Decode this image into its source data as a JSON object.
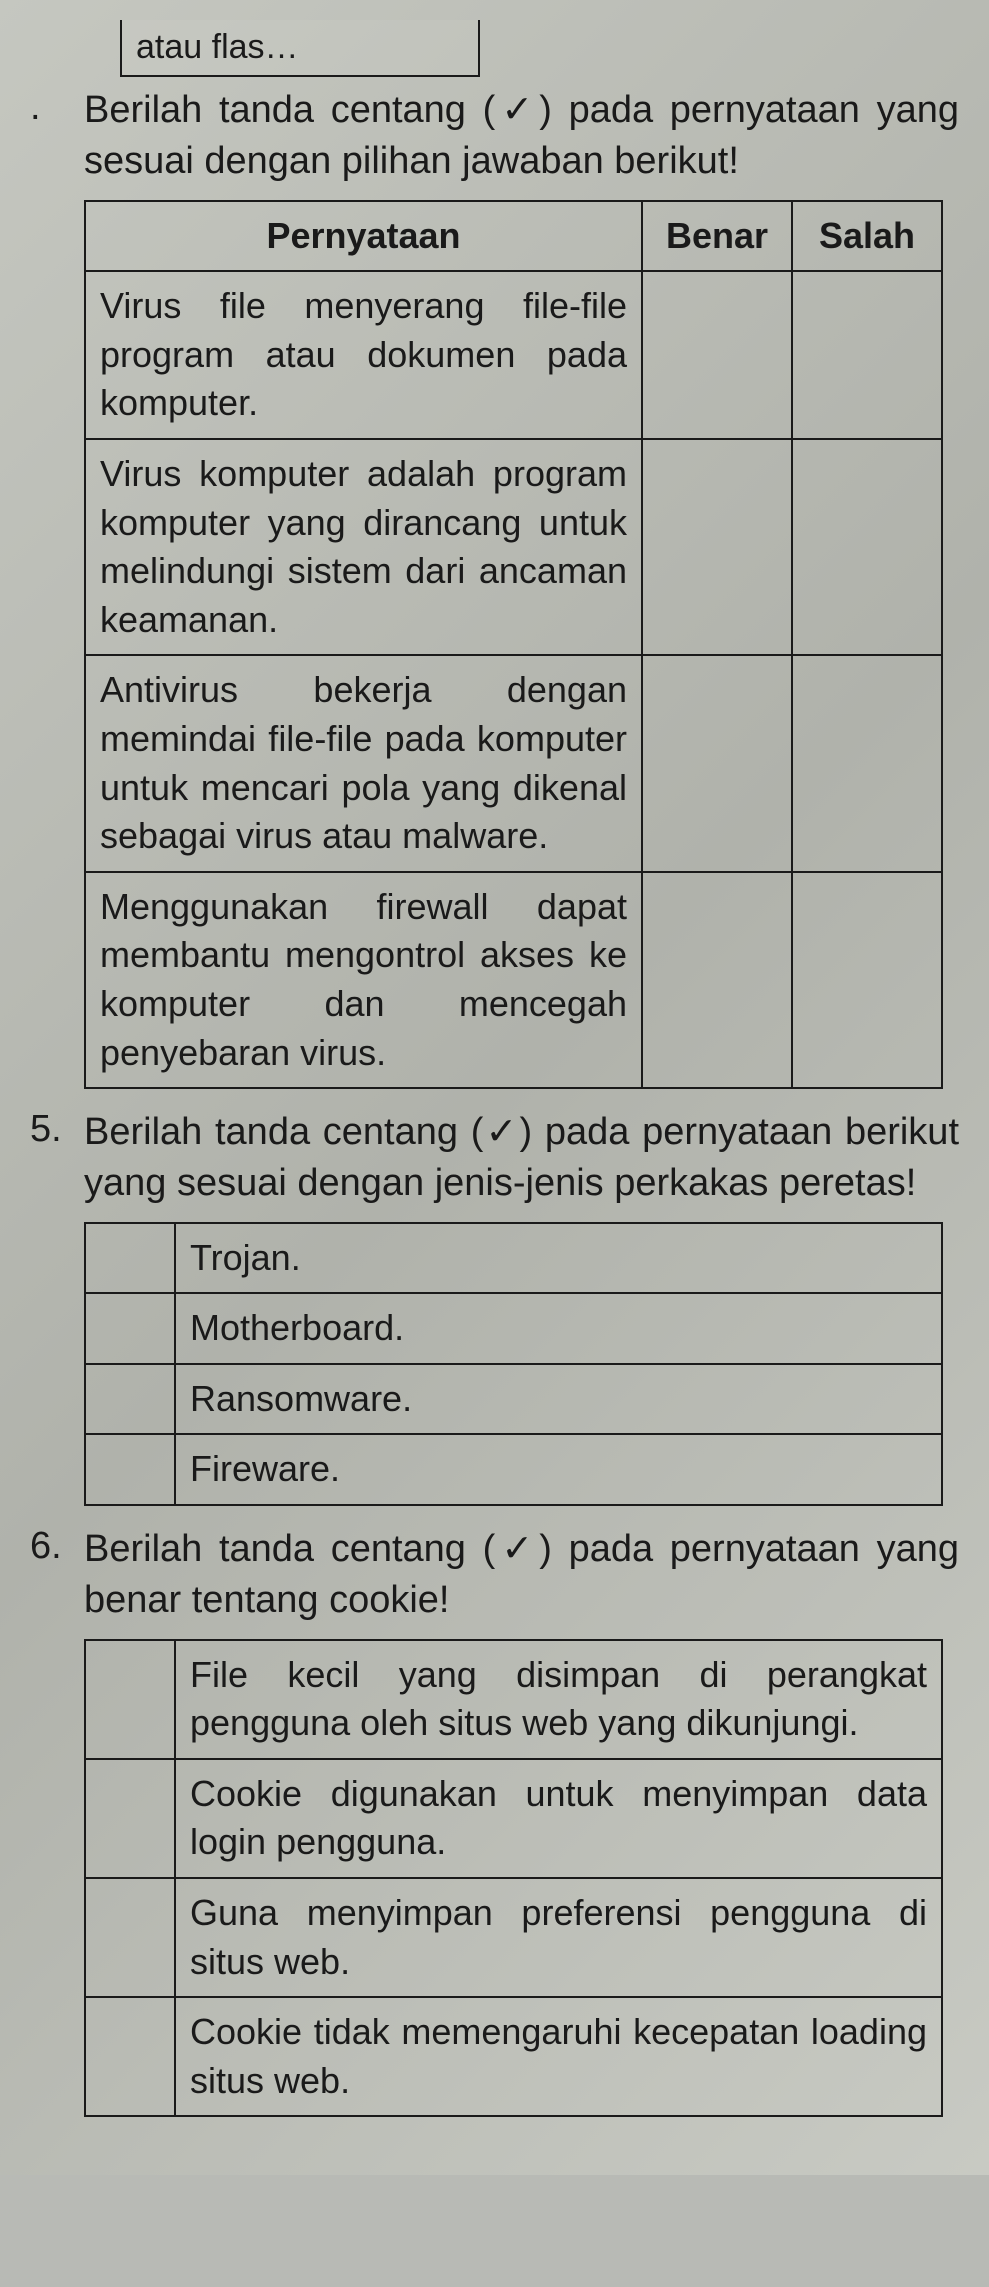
{
  "fragment_top": "atau flas…",
  "q4": {
    "number": ".",
    "text": "Berilah tanda centang (✓) pada pernyataan yang sesuai dengan pilihan jawaban berikut!",
    "headers": {
      "stmt": "Pernyataan",
      "benar": "Benar",
      "salah": "Salah"
    },
    "rows": [
      {
        "stmt": "Virus file menyerang file-file program atau dokumen pada komputer."
      },
      {
        "stmt": "Virus komputer adalah program komputer yang dirancang untuk melindungi sistem dari ancaman keamanan."
      },
      {
        "stmt": "Antivirus bekerja dengan memindai file-file pada komputer untuk mencari pola yang dikenal sebagai virus atau malware."
      },
      {
        "stmt": "Menggunakan firewall dapat membantu mengontrol akses ke komputer dan mencegah penyebaran virus."
      }
    ]
  },
  "q5": {
    "number": "5.",
    "text": "Berilah tanda centang (✓) pada pernyataan berikut yang sesuai dengan jenis-jenis perkakas peretas!",
    "rows": [
      {
        "item": "Trojan."
      },
      {
        "item": "Motherboard."
      },
      {
        "item": "Ransomware."
      },
      {
        "item": "Fireware."
      }
    ]
  },
  "q6": {
    "number": "6.",
    "text": "Berilah tanda centang (✓) pada pernyataan yang benar tentang cookie!",
    "rows": [
      {
        "item": "File kecil yang disimpan di perangkat pengguna oleh situs web yang dikunjungi."
      },
      {
        "item": "Cookie digunakan untuk menyimpan data login pengguna."
      },
      {
        "item": "Guna menyimpan preferensi pengguna di situs web."
      },
      {
        "item": "Cookie tidak memengaruhi kecepatan loading situs web."
      }
    ]
  }
}
